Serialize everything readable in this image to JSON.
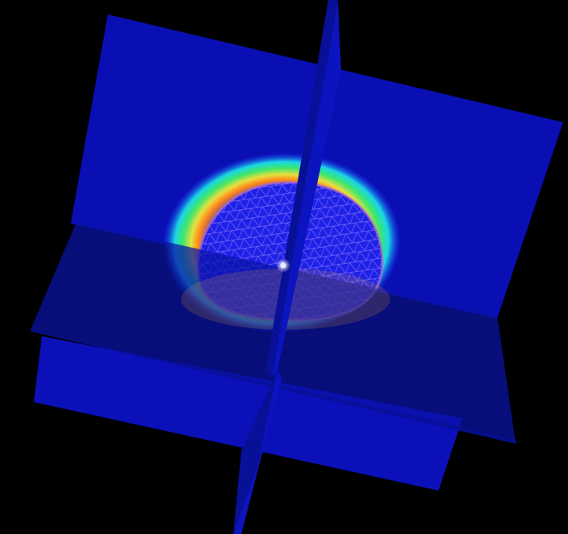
{
  "scene": {
    "background_color": "#000000",
    "plane_colors": {
      "back_vertical": "#0a0fb4",
      "horizontal_top": "#0a12a8",
      "horizontal_bottom": "#0a10a0",
      "lower_vertical": "#0b10b8",
      "thin_vertical_edge": "#081098",
      "thin_vertical_face": "#0c14c0"
    },
    "heatmap_colors": {
      "outer_halo": "#1a40ff",
      "cyan_ring": "#19d6e6",
      "green_ring": "#3ee66b",
      "yellow_ring": "#e6e040",
      "orange_ring": "#ff8a1a",
      "core": "#1a1adc"
    },
    "mesh_color": "#8a70ff",
    "highlight_color": "#e6ecff"
  }
}
